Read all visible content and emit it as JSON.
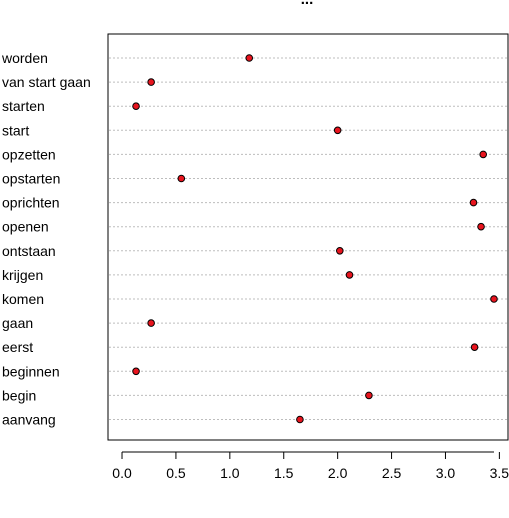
{
  "chart_data": {
    "type": "scatter",
    "subtype": "dotchart",
    "title": "...",
    "xlabel": "...",
    "ylabel": "",
    "categories": [
      "worden",
      "van start gaan",
      "starten",
      "start",
      "opzetten",
      "opstarten",
      "oprichten",
      "openen",
      "ontstaan",
      "krijgen",
      "komen",
      "gaan",
      "eerst",
      "beginnen",
      "begin",
      "aanvang"
    ],
    "values": [
      1.18,
      0.27,
      0.13,
      2.0,
      3.35,
      0.55,
      3.26,
      3.33,
      2.02,
      2.11,
      3.45,
      0.27,
      3.27,
      0.13,
      2.29,
      1.65
    ],
    "xlim": [
      -0.13,
      3.58
    ],
    "xticks": [
      0.0,
      0.5,
      1.0,
      1.5,
      2.0,
      2.5,
      3.0,
      3.5
    ],
    "xtick_labels": [
      "0.0",
      "0.5",
      "1.0",
      "1.5",
      "2.0",
      "2.5",
      "3.0",
      "3.5"
    ],
    "grid": "horizontal dotted",
    "point_color": "#e8141e",
    "point_border": "#000000"
  }
}
